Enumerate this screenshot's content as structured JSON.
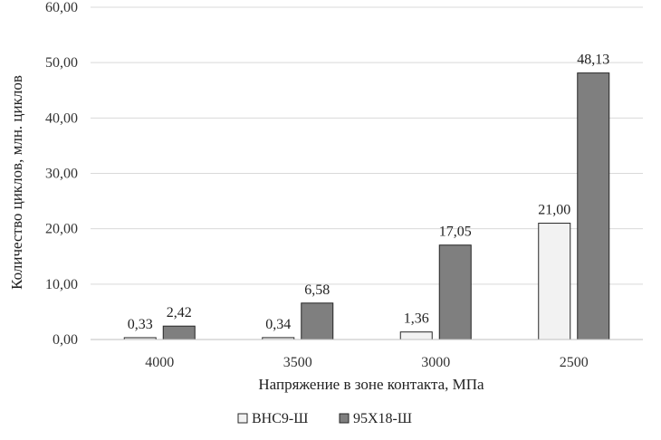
{
  "chart_data": {
    "type": "bar",
    "categories": [
      "4000",
      "3500",
      "3000",
      "2500"
    ],
    "series": [
      {
        "name": "ВНС9-Ш",
        "values": [
          0.33,
          0.34,
          1.36,
          21.0
        ],
        "labels": [
          "0,33",
          "0,34",
          "1,36",
          "21,00"
        ],
        "color": "#f2f2f2"
      },
      {
        "name": "95Х18-Ш",
        "values": [
          2.42,
          6.58,
          17.05,
          48.13
        ],
        "labels": [
          "2,42",
          "6,58",
          "17,05",
          "48,13"
        ],
        "color": "#7f7f7f"
      }
    ],
    "xlabel": "Напряжение в зоне контакта, МПа",
    "ylabel": "Количество циклов, млн. циклов",
    "ylim": [
      0,
      60
    ],
    "yticks": [
      0,
      10,
      20,
      30,
      40,
      50,
      60
    ],
    "ytick_labels": [
      "0,00",
      "10,00",
      "20,00",
      "30,00",
      "40,00",
      "50,00",
      "60,00"
    ],
    "grid": true,
    "legend_position": "bottom"
  }
}
